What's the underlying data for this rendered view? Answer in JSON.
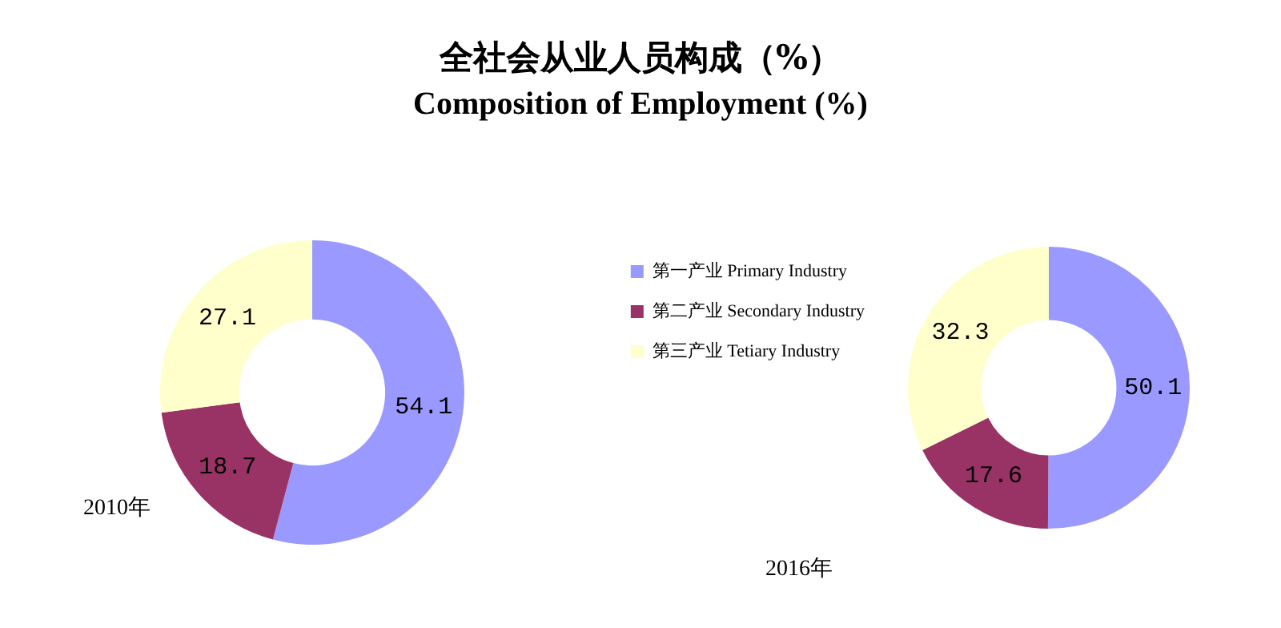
{
  "chart_data": [
    {
      "type": "donut",
      "title": "全社会从业人员构成（%）",
      "subtitle": "Composition of Employment (%)",
      "categories": [
        "第一产业 Primary Industry",
        "第二产业 Secondary Industry",
        "第三产业 Tetiary Industry"
      ],
      "values": [
        54.1,
        18.7,
        27.1
      ],
      "colors": [
        "#9999ff",
        "#993366",
        "#ffffcc"
      ],
      "data_labels": true,
      "legend": "right",
      "annotations": [
        "2010年"
      ]
    },
    {
      "type": "donut",
      "categories": [
        null,
        null,
        null
      ],
      "values": [
        50.1,
        17.6,
        32.3
      ],
      "colors": [
        "#9999ff",
        "#993366",
        "#ffffcc"
      ],
      "data_labels": true,
      "legend": false,
      "annotations": [
        "2016年"
      ]
    }
  ]
}
